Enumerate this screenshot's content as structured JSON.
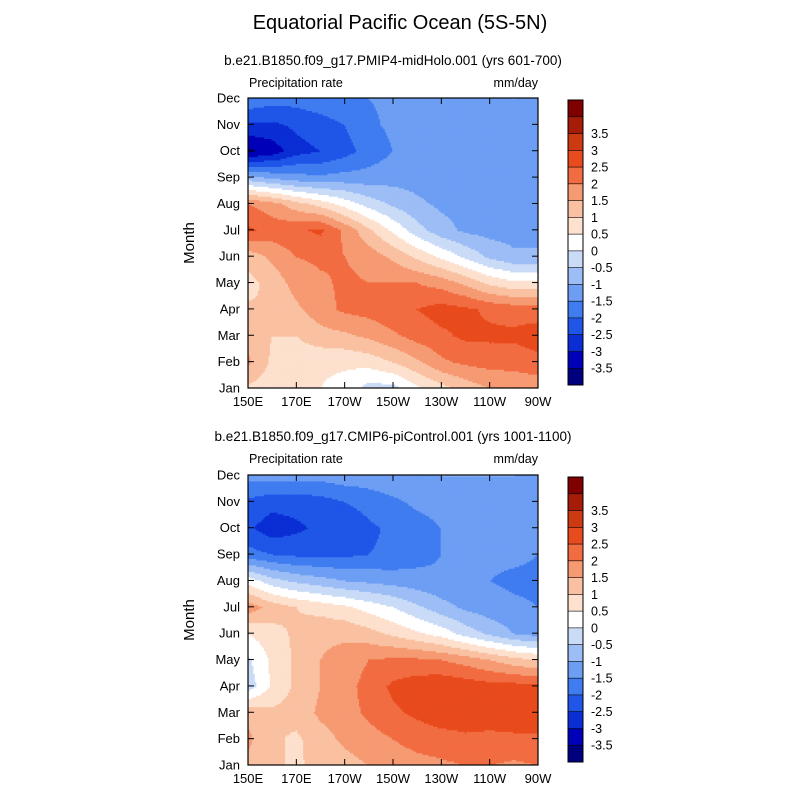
{
  "title": "Equatorial Pacific Ocean (5S-5N)",
  "colors": {
    "levels": [
      "#00007f",
      "#0000b8",
      "#0a2ed4",
      "#1f56e8",
      "#3f7cf0",
      "#6d9ef4",
      "#9cbdf5",
      "#c9dbf7",
      "#ffffff",
      "#fde0cd",
      "#f9c1a1",
      "#f69a73",
      "#f26c42",
      "#e84b1d",
      "#cd3a12",
      "#a51d08",
      "#7f0000"
    ],
    "frame": "#000000"
  },
  "chart_data": [
    {
      "type": "heatmap",
      "subtitle": "b.e21.B1850.f09_g17.PMIP4-midHolo.001 (yrs 601-700)",
      "left_label": "Precipitation rate",
      "right_label": "mm/day",
      "ylabel": "Month",
      "xlabel": "",
      "x_ticks": [
        "150E",
        "170E",
        "170W",
        "150W",
        "130W",
        "110W",
        "90W"
      ],
      "y_ticks": [
        "Jan",
        "Feb",
        "Mar",
        "Apr",
        "May",
        "Jun",
        "Jul",
        "Aug",
        "Sep",
        "Oct",
        "Nov",
        "Dec"
      ],
      "colorbar_labels": [
        "3.5",
        "3",
        "2.5",
        "2",
        "1.5",
        "1",
        "0.5",
        "0",
        "-0.5",
        "-1",
        "-1.5",
        "-2",
        "-2.5",
        "-3",
        "-3.5"
      ],
      "levels": [
        -3.5,
        -3,
        -2.5,
        -2,
        -1.5,
        -1,
        -0.5,
        0,
        0.5,
        1,
        1.5,
        2,
        2.5,
        3,
        3.5
      ],
      "grid_lon": [
        "150E",
        "160E",
        "170E",
        "180",
        "170W",
        "160W",
        "150W",
        "140W",
        "130W",
        "120W",
        "110W",
        "100W",
        "90W"
      ],
      "grid_month": [
        "Jan",
        "Feb",
        "Mar",
        "Apr",
        "May",
        "Jun",
        "Jul",
        "Aug",
        "Sep",
        "Oct",
        "Nov",
        "Dec"
      ],
      "values": [
        [
          0.9,
          0.7,
          0.6,
          0.5,
          0.3,
          -0.2,
          -0.2,
          0.4,
          0.8,
          1.2,
          1.5,
          1.6,
          1.7
        ],
        [
          1.6,
          0.9,
          0.7,
          0.6,
          0.6,
          0.7,
          1.0,
          1.4,
          1.9,
          2.1,
          2.2,
          2.2,
          2.3
        ],
        [
          1.3,
          1.0,
          1.0,
          1.3,
          1.4,
          1.6,
          1.9,
          2.2,
          2.4,
          2.6,
          2.6,
          2.6,
          2.8
        ],
        [
          1.1,
          1.0,
          1.4,
          1.8,
          2.1,
          2.2,
          2.4,
          2.5,
          2.7,
          2.6,
          2.4,
          2.3,
          2.2
        ],
        [
          0.8,
          1.2,
          1.7,
          1.9,
          2.1,
          2.0,
          2.0,
          2.0,
          1.8,
          1.4,
          0.9,
          0.6,
          0.6
        ],
        [
          1.2,
          1.6,
          2.0,
          2.1,
          2.0,
          1.8,
          1.4,
          0.9,
          0.4,
          -0.1,
          -0.6,
          -0.9,
          -0.9
        ],
        [
          2.6,
          2.3,
          2.4,
          2.6,
          1.9,
          1.1,
          0.4,
          -0.3,
          -0.8,
          -1.1,
          -1.2,
          -1.2,
          -1.2
        ],
        [
          2.0,
          1.7,
          1.2,
          0.8,
          0.3,
          -0.2,
          -0.6,
          -0.9,
          -1.1,
          -1.2,
          -1.2,
          -1.2,
          -1.2
        ],
        [
          -0.8,
          -1.1,
          -1.3,
          -1.4,
          -1.3,
          -1.3,
          -1.2,
          -1.2,
          -1.2,
          -1.2,
          -1.2,
          -1.2,
          -1.3
        ],
        [
          -3.6,
          -3.3,
          -2.7,
          -2.5,
          -2.2,
          -1.8,
          -1.5,
          -1.3,
          -1.2,
          -1.2,
          -1.2,
          -1.2,
          -1.5
        ],
        [
          -2.6,
          -2.6,
          -2.4,
          -2.2,
          -2.0,
          -1.6,
          -1.4,
          -1.3,
          -1.2,
          -1.2,
          -1.2,
          -1.2,
          -1.4
        ],
        [
          -1.6,
          -1.8,
          -1.8,
          -1.7,
          -1.6,
          -1.5,
          -1.4,
          -1.3,
          -1.2,
          -1.2,
          -1.1,
          -1.0,
          -1.3
        ]
      ]
    },
    {
      "type": "heatmap",
      "subtitle": "b.e21.B1850.f09_g17.CMIP6-piControl.001 (yrs 1001-1100)",
      "left_label": "Precipitation rate",
      "right_label": "mm/day",
      "ylabel": "Month",
      "xlabel": "",
      "x_ticks": [
        "150E",
        "170E",
        "170W",
        "150W",
        "130W",
        "110W",
        "90W"
      ],
      "y_ticks": [
        "Jan",
        "Feb",
        "Mar",
        "Apr",
        "May",
        "Jun",
        "Jul",
        "Aug",
        "Sep",
        "Oct",
        "Nov",
        "Dec"
      ],
      "colorbar_labels": [
        "3.5",
        "3",
        "2.5",
        "2",
        "1.5",
        "1",
        "0.5",
        "0",
        "-0.5",
        "-1",
        "-1.5",
        "-2",
        "-2.5",
        "-3",
        "-3.5"
      ],
      "levels": [
        -3.5,
        -3,
        -2.5,
        -2,
        -1.5,
        -1,
        -0.5,
        0,
        0.5,
        1,
        1.5,
        2,
        2.5,
        3,
        3.5
      ],
      "grid_lon": [
        "150E",
        "160E",
        "170E",
        "180",
        "170W",
        "160W",
        "150W",
        "140W",
        "130W",
        "120W",
        "110W",
        "100W",
        "90W"
      ],
      "grid_month": [
        "Jan",
        "Feb",
        "Mar",
        "Apr",
        "May",
        "Jun",
        "Jul",
        "Aug",
        "Sep",
        "Oct",
        "Nov",
        "Dec"
      ],
      "values": [
        [
          1.4,
          1.1,
          0.9,
          1.2,
          1.3,
          1.5,
          1.7,
          1.8,
          1.9,
          2.0,
          2.0,
          1.9,
          2.0
        ],
        [
          1.6,
          1.1,
          0.9,
          1.3,
          1.6,
          1.8,
          2.0,
          2.2,
          2.3,
          2.4,
          2.4,
          2.4,
          2.4
        ],
        [
          1.4,
          1.1,
          1.2,
          1.6,
          1.8,
          2.1,
          2.4,
          2.6,
          2.8,
          2.8,
          2.7,
          2.8,
          2.9
        ],
        [
          -0.3,
          0.6,
          1.1,
          1.5,
          1.8,
          2.2,
          2.6,
          2.8,
          2.9,
          2.8,
          2.7,
          2.7,
          2.6
        ],
        [
          -0.1,
          0.6,
          1.1,
          1.5,
          1.7,
          2.0,
          2.1,
          2.1,
          2.0,
          1.8,
          1.5,
          1.2,
          1.0
        ],
        [
          0.5,
          0.8,
          1.1,
          1.4,
          1.4,
          1.2,
          0.9,
          0.6,
          0.3,
          -0.2,
          -0.6,
          -1.0,
          -1.2
        ],
        [
          1.8,
          1.3,
          1.0,
          0.8,
          0.6,
          0.3,
          0.0,
          -0.4,
          -0.8,
          -1.1,
          -1.3,
          -1.4,
          -1.5
        ],
        [
          0.3,
          -0.3,
          -0.6,
          -0.8,
          -1.0,
          -1.1,
          -1.2,
          -1.3,
          -1.4,
          -1.4,
          -1.5,
          -1.6,
          -1.6
        ],
        [
          -1.8,
          -2.0,
          -2.1,
          -2.1,
          -2.1,
          -2.0,
          -1.9,
          -1.7,
          -1.5,
          -1.4,
          -1.4,
          -1.4,
          -1.5
        ],
        [
          -2.4,
          -2.8,
          -2.6,
          -2.4,
          -2.4,
          -2.1,
          -1.9,
          -1.7,
          -1.5,
          -1.4,
          -1.3,
          -1.4,
          -1.5
        ],
        [
          -2.1,
          -2.3,
          -2.3,
          -2.2,
          -2.0,
          -1.8,
          -1.6,
          -1.4,
          -1.3,
          -1.2,
          -1.2,
          -1.2,
          -1.4
        ],
        [
          -1.3,
          -1.3,
          -1.3,
          -1.3,
          -1.2,
          -1.2,
          -1.1,
          -1.1,
          -1.0,
          -1.0,
          -1.0,
          -1.0,
          -1.1
        ]
      ]
    }
  ]
}
